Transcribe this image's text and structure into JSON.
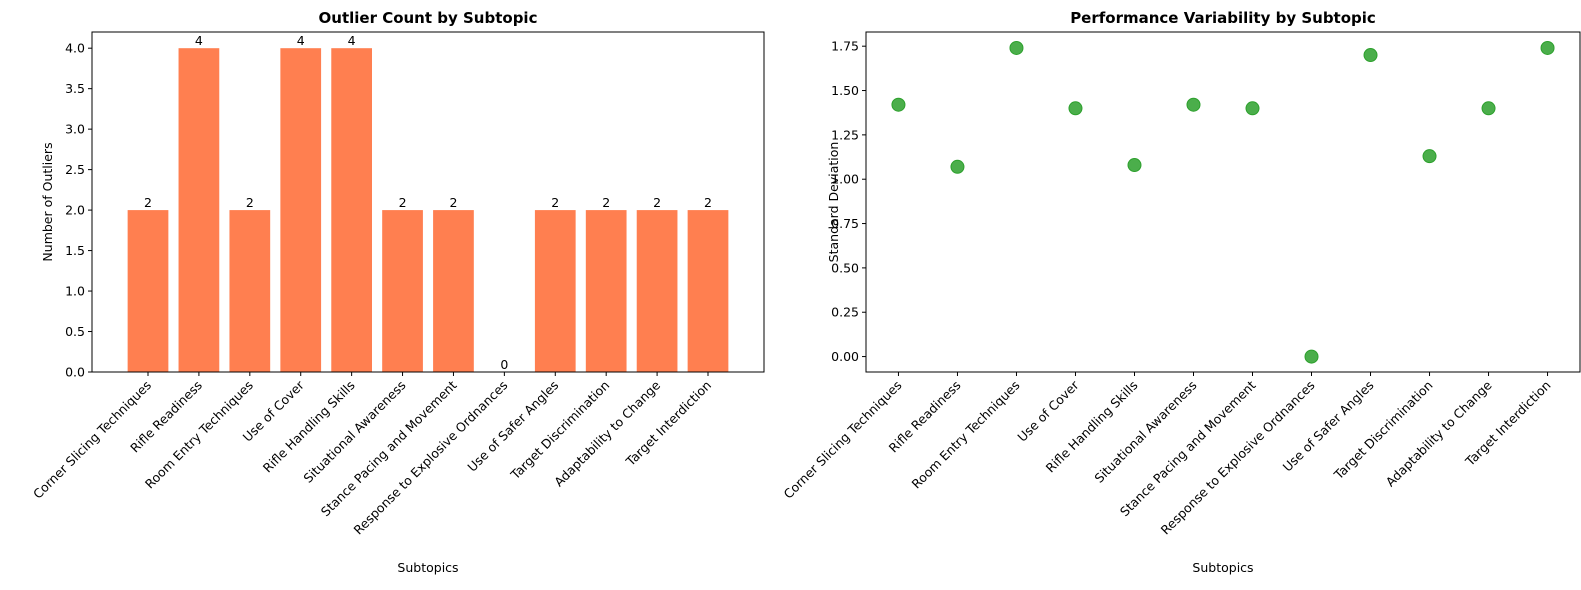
{
  "chart_data": [
    {
      "type": "bar",
      "title": "Outlier Count by Subtopic",
      "xlabel": "Subtopics",
      "ylabel": "Number of Outliers",
      "categories": [
        "Corner Slicing Techniques",
        "Rifle Readiness",
        "Room Entry Techniques",
        "Use of Cover",
        "Rifle Handling Skills",
        "Situational Awareness",
        "Stance Pacing and Movement",
        "Response to Explosive Ordnances",
        "Use of Safer Angles",
        "Target Discrimination",
        "Adaptability to Change",
        "Target Interdiction"
      ],
      "values": [
        2,
        4,
        2,
        4,
        4,
        2,
        2,
        0,
        2,
        2,
        2,
        2
      ],
      "data_labels": [
        "2",
        "4",
        "2",
        "4",
        "4",
        "2",
        "2",
        "0",
        "2",
        "2",
        "2",
        "2"
      ],
      "ylim": [
        0,
        4.2
      ],
      "yticks": [
        "0.0",
        "0.5",
        "1.0",
        "1.5",
        "2.0",
        "2.5",
        "3.0",
        "3.5",
        "4.0"
      ],
      "color": "#ff7f50",
      "grid": false
    },
    {
      "type": "scatter",
      "title": "Performance Variability by Subtopic",
      "xlabel": "Subtopics",
      "ylabel": "Standard Deviation",
      "categories": [
        "Corner Slicing Techniques",
        "Rifle Readiness",
        "Room Entry Techniques",
        "Use of Cover",
        "Rifle Handling Skills",
        "Situational Awareness",
        "Stance Pacing and Movement",
        "Response to Explosive Ordnances",
        "Use of Safer Angles",
        "Target Discrimination",
        "Adaptability to Change",
        "Target Interdiction"
      ],
      "values": [
        1.42,
        1.07,
        1.74,
        1.4,
        1.08,
        1.42,
        1.4,
        0.0,
        1.7,
        1.13,
        1.4,
        1.74
      ],
      "ylim": [
        -0.087,
        1.83
      ],
      "yticks": [
        "0.00",
        "0.25",
        "0.50",
        "0.75",
        "1.00",
        "1.25",
        "1.50",
        "1.75"
      ],
      "color": "#2ca02c",
      "grid": false
    }
  ]
}
